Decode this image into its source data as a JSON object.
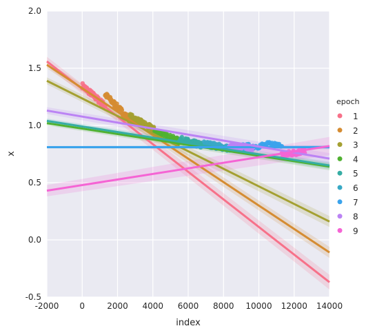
{
  "chart_data": {
    "type": "scatter",
    "title": "",
    "xlabel": "index",
    "ylabel": "x",
    "xlim": [
      -2000,
      14000
    ],
    "ylim": [
      -0.5,
      2.0
    ],
    "xticks": [
      -2000,
      0,
      2000,
      4000,
      6000,
      8000,
      10000,
      12000,
      14000
    ],
    "yticks": [
      -0.5,
      0.0,
      0.5,
      1.0,
      1.5,
      2.0
    ],
    "grid": true,
    "legend": {
      "title": "epoch",
      "placement": "right"
    },
    "series": [
      {
        "name": "1",
        "color": "#f77189",
        "x_range": [
          0,
          1300
        ],
        "y_range": [
          1.35,
          1.17
        ],
        "fit": [
          [
            -2000,
            1.56
          ],
          [
            14000,
            -0.37
          ]
        ],
        "band": 0.04
      },
      {
        "name": "2",
        "color": "#d58c32",
        "x_range": [
          1300,
          2700
        ],
        "y_range": [
          1.27,
          1.05
        ],
        "fit": [
          [
            -2000,
            1.53
          ],
          [
            14000,
            -0.11
          ]
        ],
        "band": 0.03
      },
      {
        "name": "3",
        "color": "#a4a031",
        "x_range": [
          2700,
          4100
        ],
        "y_range": [
          1.08,
          0.96
        ],
        "fit": [
          [
            -2000,
            1.39
          ],
          [
            14000,
            0.16
          ]
        ],
        "band": 0.03
      },
      {
        "name": "4",
        "color": "#50b131",
        "x_range": [
          4100,
          5500
        ],
        "y_range": [
          0.95,
          0.86
        ],
        "fit": [
          [
            -2000,
            1.02
          ],
          [
            14000,
            0.64
          ]
        ],
        "band": 0.02
      },
      {
        "name": "5",
        "color": "#36ada4",
        "x_range": [
          5500,
          6900
        ],
        "y_range": [
          0.88,
          0.82
        ],
        "fit": [
          [
            -2000,
            1.04
          ],
          [
            14000,
            0.65
          ]
        ],
        "band": 0.02
      },
      {
        "name": "6",
        "color": "#38a9c5",
        "x_range": [
          6900,
          8300
        ],
        "y_range": [
          0.84,
          0.8
        ],
        "fit": [
          [
            -2000,
            0.81
          ],
          [
            14000,
            0.81
          ]
        ],
        "band": 0.01
      },
      {
        "name": "7",
        "color": "#3ba3ec",
        "x_range": [
          8300,
          11300
        ],
        "y_range": [
          0.8,
          0.84
        ],
        "fit": [
          [
            -2000,
            0.81
          ],
          [
            14000,
            0.81
          ]
        ],
        "band": 0.01
      },
      {
        "name": "8",
        "color": "#bb83f4",
        "x_range": [
          8300,
          9700
        ],
        "y_range": [
          0.82,
          0.8
        ],
        "fit": [
          [
            -2000,
            1.13
          ],
          [
            14000,
            0.71
          ]
        ],
        "band": 0.03
      },
      {
        "name": "9",
        "color": "#f564d4",
        "x_range": [
          11300,
          12600
        ],
        "y_range": [
          0.74,
          0.78
        ],
        "fit": [
          [
            -2000,
            0.43
          ],
          [
            14000,
            0.82
          ]
        ],
        "band": 0.05
      }
    ]
  }
}
